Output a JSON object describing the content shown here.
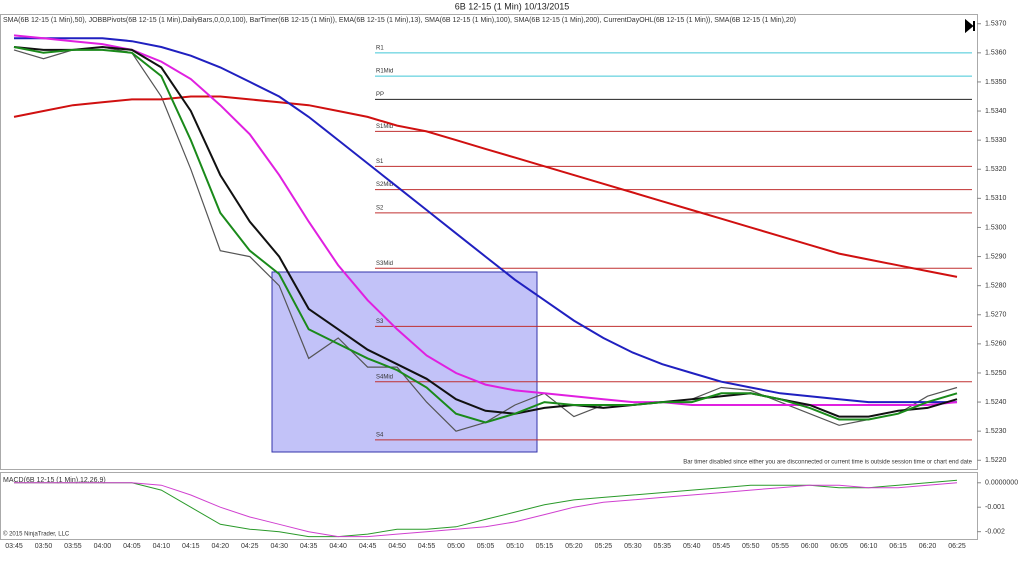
{
  "chart_data": {
    "type": "line",
    "title": "6B 12-15 (1 Min)  10/13/2015",
    "subtitle": "SMA(6B 12-15 (1 Min),50), JOBBPivots(6B 12-15 (1 Min),DailyBars,0,0,0,100), BarTimer(6B 12-15 (1 Min)), EMA(6B 12-15 (1 Min),13), SMA(6B 12-15 (1 Min),100), SMA(6B 12-15 (1 Min),200), CurrentDayOHL(6B 12-15 (1 Min)), SMA(6B 12-15 (1 Min),20)",
    "annotation": "Bar timer disabled since either you are disconnected or current time is outside session time or chart end date",
    "copyright": "© 2015 NinjaTrader, LLC",
    "categories": [
      "03:45",
      "03:50",
      "03:55",
      "04:00",
      "04:05",
      "04:10",
      "04:15",
      "04:20",
      "04:25",
      "04:30",
      "04:35",
      "04:40",
      "04:45",
      "04:50",
      "04:55",
      "05:00",
      "05:05",
      "05:10",
      "05:15",
      "05:20",
      "05:25",
      "05:30",
      "05:35",
      "05:40",
      "05:45",
      "05:50",
      "05:55",
      "06:00",
      "06:05",
      "06:10",
      "06:15",
      "06:20",
      "06:25"
    ],
    "ylim": [
      1.5217,
      1.5373
    ],
    "yticks": [
      {
        "value": 1.522,
        "label": "1.5220"
      },
      {
        "value": 1.523,
        "label": "1.5230"
      },
      {
        "value": 1.524,
        "label": "1.5240"
      },
      {
        "value": 1.525,
        "label": "1.5250"
      },
      {
        "value": 1.526,
        "label": "1.5260"
      },
      {
        "value": 1.527,
        "label": "1.5270"
      },
      {
        "value": 1.528,
        "label": "1.5280"
      },
      {
        "value": 1.529,
        "label": "1.5290"
      },
      {
        "value": 1.53,
        "label": "1.5300"
      },
      {
        "value": 1.531,
        "label": "1.5310"
      },
      {
        "value": 1.532,
        "label": "1.5320"
      },
      {
        "value": 1.533,
        "label": "1.5330"
      },
      {
        "value": 1.534,
        "label": "1.5340"
      },
      {
        "value": 1.535,
        "label": "1.5350"
      },
      {
        "value": 1.536,
        "label": "1.5360"
      },
      {
        "value": 1.537,
        "label": "1.5370"
      }
    ],
    "series": [
      {
        "color": "#555555",
        "values": [
          1.5361,
          1.5358,
          1.5361,
          1.5362,
          1.536,
          1.5345,
          1.532,
          1.5292,
          1.529,
          1.528,
          1.5255,
          1.5262,
          1.5252,
          1.5252,
          1.524,
          1.523,
          1.5233,
          1.5239,
          1.5243,
          1.5235,
          1.5239,
          1.5239,
          1.524,
          1.5241,
          1.5245,
          1.5244,
          1.524,
          1.5236,
          1.5232,
          1.5234,
          1.5236,
          1.5242,
          1.5245
        ]
      },
      {
        "color": "#d01010",
        "values": [
          1.5338,
          1.534,
          1.5342,
          1.5343,
          1.5344,
          1.5344,
          1.5345,
          1.5345,
          1.5344,
          1.5343,
          1.5342,
          1.534,
          1.5338,
          1.5335,
          1.5333,
          1.533,
          1.5327,
          1.5324,
          1.5321,
          1.5318,
          1.5315,
          1.5312,
          1.5309,
          1.5306,
          1.5303,
          1.53,
          1.5297,
          1.5294,
          1.5291,
          1.5289,
          1.5287,
          1.5285,
          1.5283
        ]
      },
      {
        "color": "#2020c0",
        "values": [
          1.5365,
          1.5365,
          1.5365,
          1.5365,
          1.5364,
          1.5362,
          1.5359,
          1.5355,
          1.535,
          1.5345,
          1.5338,
          1.533,
          1.5322,
          1.5314,
          1.5306,
          1.5298,
          1.529,
          1.5282,
          1.5275,
          1.5268,
          1.5262,
          1.5257,
          1.5253,
          1.525,
          1.5247,
          1.5245,
          1.5243,
          1.5242,
          1.5241,
          1.524,
          1.524,
          1.524,
          1.524
        ]
      },
      {
        "color": "#e020e0",
        "values": [
          1.5366,
          1.5365,
          1.5364,
          1.5363,
          1.5361,
          1.5357,
          1.5351,
          1.5342,
          1.5332,
          1.5318,
          1.5302,
          1.5287,
          1.5275,
          1.5265,
          1.5256,
          1.525,
          1.5246,
          1.5244,
          1.5243,
          1.5242,
          1.5241,
          1.524,
          1.524,
          1.5239,
          1.5239,
          1.5239,
          1.5239,
          1.5239,
          1.5239,
          1.5239,
          1.5239,
          1.5239,
          1.524
        ]
      },
      {
        "color": "#111111",
        "values": [
          1.5362,
          1.5361,
          1.5361,
          1.5362,
          1.5361,
          1.5355,
          1.534,
          1.5318,
          1.5302,
          1.529,
          1.5272,
          1.5265,
          1.5258,
          1.5253,
          1.5248,
          1.5241,
          1.5237,
          1.5236,
          1.5238,
          1.5239,
          1.5238,
          1.5239,
          1.524,
          1.5241,
          1.5242,
          1.5243,
          1.5241,
          1.5239,
          1.5235,
          1.5235,
          1.5237,
          1.5238,
          1.5241
        ]
      },
      {
        "color": "#1a8a1a",
        "values": [
          1.5362,
          1.536,
          1.5361,
          1.5361,
          1.536,
          1.5352,
          1.533,
          1.5305,
          1.5292,
          1.5284,
          1.5265,
          1.526,
          1.5255,
          1.5251,
          1.5245,
          1.5236,
          1.5233,
          1.5236,
          1.524,
          1.5239,
          1.5239,
          1.5239,
          1.524,
          1.524,
          1.5243,
          1.5243,
          1.5241,
          1.5238,
          1.5234,
          1.5234,
          1.5236,
          1.524,
          1.5243
        ]
      }
    ],
    "pivots": [
      {
        "label": "R1",
        "value": 1.536,
        "color": "#40c8d8"
      },
      {
        "label": "R1Mid",
        "value": 1.5352,
        "color": "#40c8d8"
      },
      {
        "label": "PP",
        "value": 1.5344,
        "color": "#222222"
      },
      {
        "label": "S1Mid",
        "value": 1.5333,
        "color": "#c03030"
      },
      {
        "label": "S1",
        "value": 1.5321,
        "color": "#c03030"
      },
      {
        "label": "S2Mid",
        "value": 1.5313,
        "color": "#c03030"
      },
      {
        "label": "S2",
        "value": 1.5305,
        "color": "#c03030"
      },
      {
        "label": "S3Mid",
        "value": 1.5286,
        "color": "#c03030"
      },
      {
        "label": "S3",
        "value": 1.5266,
        "color": "#c03030"
      },
      {
        "label": "S4Mid",
        "value": 1.5247,
        "color": "#c03030"
      },
      {
        "label": "S4",
        "value": 1.5227,
        "color": "#c03030"
      }
    ],
    "macd": {
      "title": "MACD(6B 12-15 (1 Min),12,26,9)",
      "ylim": [
        -0.0023,
        0.0004
      ],
      "yticks": [
        {
          "value": -0.002,
          "label": "-0.002"
        },
        {
          "value": -0.001,
          "label": "-0.001"
        },
        {
          "value": 0,
          "label": "0.0000000"
        }
      ],
      "series": [
        {
          "color": "#2a9a2a",
          "values": [
            0,
            0,
            0,
            0,
            0,
            -0.0003,
            -0.001,
            -0.0017,
            -0.0019,
            -0.002,
            -0.0022,
            -0.0022,
            -0.0021,
            -0.0019,
            -0.0019,
            -0.0018,
            -0.0015,
            -0.0012,
            -0.0009,
            -0.0007,
            -0.0006,
            -0.0005,
            -0.0004,
            -0.0003,
            -0.0002,
            -0.0001,
            -0.0001,
            -0.0001,
            -0.0002,
            -0.0002,
            -0.0001,
            0,
            0.0001
          ]
        },
        {
          "color": "#d040d0",
          "values": [
            0,
            0,
            0,
            0,
            0,
            -0.0001,
            -0.0005,
            -0.001,
            -0.0014,
            -0.0017,
            -0.002,
            -0.0022,
            -0.0022,
            -0.0021,
            -0.002,
            -0.0019,
            -0.0018,
            -0.0016,
            -0.0013,
            -0.001,
            -0.0008,
            -0.0007,
            -0.0006,
            -0.0005,
            -0.0004,
            -0.0003,
            -0.0002,
            -0.0001,
            -0.0001,
            -0.0002,
            -0.0002,
            -0.0001,
            0
          ]
        }
      ]
    }
  }
}
